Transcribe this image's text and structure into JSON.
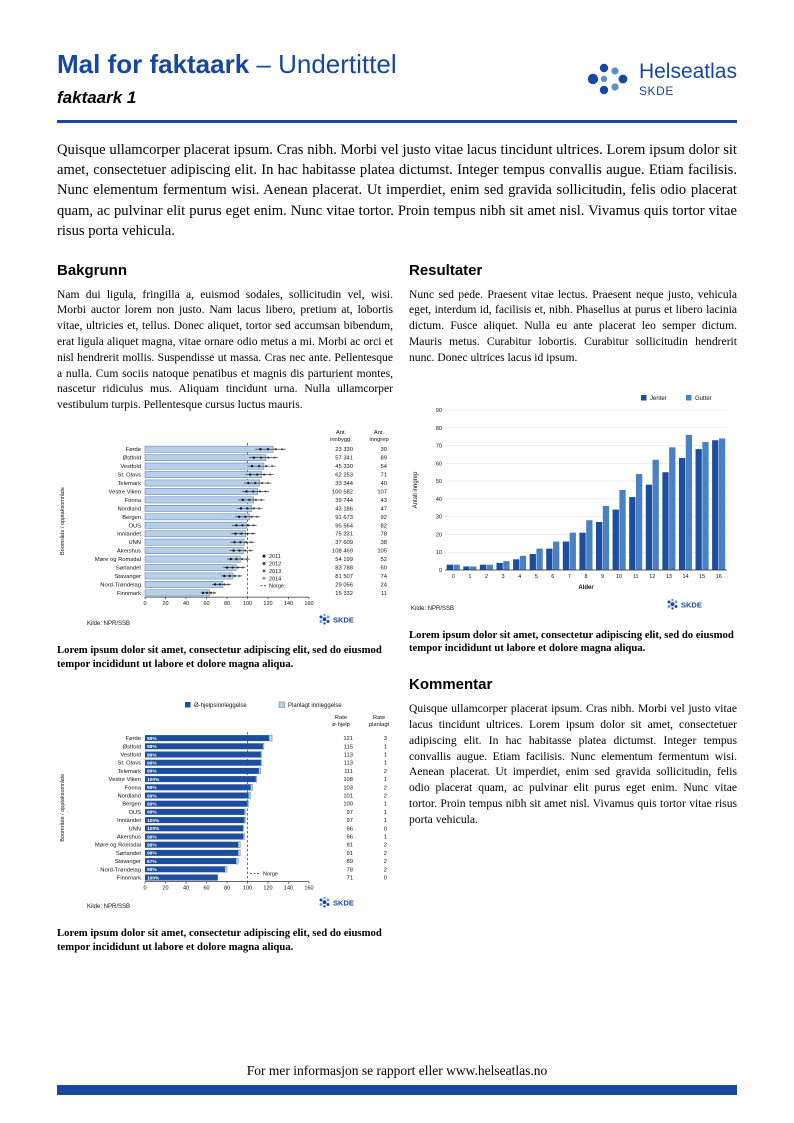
{
  "header": {
    "title_bold": "Mal for faktaark",
    "title_rest": "– Undertittel",
    "sheet_label": "faktaark 1",
    "brand_name": "Helseatlas",
    "brand_org": "SKDE"
  },
  "intro": "Quisque ullamcorper placerat ipsum. Cras nibh. Morbi vel justo vitae lacus tincidunt ultrices. Lorem ipsum dolor sit amet, consectetuer adipiscing elit. In hac habitasse platea dictumst. Integer tempus convallis augue. Etiam facilisis. Nunc elementum fermentum wisi. Aenean placerat. Ut imperdiet, enim sed gravida sollicitudin, felis odio placerat quam, ac pulvinar elit purus eget enim. Nunc vitae tortor. Proin tempus nibh sit amet nisl. Vivamus quis tortor vitae risus porta vehicula.",
  "sections": {
    "bakgrunn": {
      "heading": "Bakgrunn",
      "body": "Nam dui ligula, fringilla a, euismod sodales, sollicitudin vel, wisi. Morbi auctor lorem non justo. Nam lacus libero, pretium at, lobortis vitae, ultricies et, tellus. Donec aliquet, tortor sed accumsan bibendum, erat ligula aliquet magna, vitae ornare odio metus a mi. Morbi ac orci et nisl hendrerit mollis. Suspendisse ut massa. Cras nec ante. Pellentesque a nulla. Cum sociis natoque penatibus et magnis dis parturient montes, nascetur ridiculus mus. Aliquam tincidunt urna. Nulla ullamcorper vestibulum turpis. Pellentesque cursus luctus mauris."
    },
    "resultater": {
      "heading": "Resultater",
      "body": "Nunc sed pede. Praesent vitae lectus. Praesent neque justo, vehicula eget, interdum id, facilisis et, nibh. Phasellus at purus et libero lacinia dictum. Fusce aliquet. Nulla eu ante placerat leo semper dictum. Mauris metus. Curabitur lobortis. Curabitur sollicitudin hendrerit nunc. Donec ultrices lacus id ipsum."
    },
    "kommentar": {
      "heading": "Kommentar",
      "body": "Quisque ullamcorper placerat ipsum. Cras nibh. Morbi vel justo vitae lacus tincidunt ultrices. Lorem ipsum dolor sit amet, consectetuer adipiscing elit. In hac habitasse platea dictumst. Integer tempus convallis augue. Etiam facilisis. Nunc elementum fermentum wisi. Aenean placerat. Ut imperdiet, enim sed gravida sollicitudin, felis odio placerat quam, ac pulvinar elit purus eget enim. Nunc vitae tortor. Proin tempus nibh sit amet nisl. Vivamus quis tortor vitae risus porta vehicula."
    }
  },
  "captions": {
    "chart1": "Lorem ipsum dolor sit amet, consectetur adipiscing elit, sed do eiusmod tempor incididunt ut labore et dolore magna aliqua.",
    "chart2": "Lorem ipsum dolor sit amet, consectetur adipiscing elit, sed do eiusmod tempor incididunt ut labore et dolore magna aliqua.",
    "chart3": "Lorem ipsum dolor sit amet, consectetur adipiscing elit, sed do eiusmod tempor incididunt ut labore et dolore magna aliqua."
  },
  "footer": {
    "text": "For mer informasjon se rapport eller www.helseatlas.no"
  },
  "colors": {
    "brand": "#17479E",
    "bar_light": "#b7cfe9",
    "bar_light_border": "#4d79ab",
    "bar_dark": "#1c4e9d",
    "bar_mid": "#4a80c4",
    "light_dot": "#6fa0d8",
    "grid": "#e3e3e3"
  },
  "chart_data": [
    {
      "id": "chart1",
      "type": "bar",
      "orientation": "horizontal",
      "ylabel": "Boområde / opptaksområde",
      "xticks": [
        0,
        20,
        40,
        60,
        80,
        100,
        120,
        140,
        160
      ],
      "xlim": [
        0,
        160
      ],
      "norge_value": 100,
      "norge_label": "Norge",
      "legend_years": [
        "2011",
        "2012",
        "2013",
        "2014"
      ],
      "col_headers": [
        [
          "Ant.",
          "innbygg."
        ],
        [
          "Ant.",
          "inngrep"
        ]
      ],
      "source": "Kilde: NPR/SSB",
      "logo": "SKDE",
      "rows": [
        {
          "label": "Førde",
          "rate": 125,
          "innbygg": "23 330",
          "inngrep": "30"
        },
        {
          "label": "Østfold",
          "rate": 118,
          "innbygg": "57 341",
          "inngrep": "89"
        },
        {
          "label": "Vestfold",
          "rate": 116,
          "innbygg": "45 330",
          "inngrep": "54"
        },
        {
          "label": "St. Olavs",
          "rate": 114,
          "innbygg": "62 253",
          "inngrep": "71"
        },
        {
          "label": "Telemark",
          "rate": 112,
          "innbygg": "33 344",
          "inngrep": "40"
        },
        {
          "label": "Vestre Viken",
          "rate": 110,
          "innbygg": "100 582",
          "inngrep": "107"
        },
        {
          "label": "Fonna",
          "rate": 106,
          "innbygg": "39 744",
          "inngrep": "43"
        },
        {
          "label": "Nordland",
          "rate": 104,
          "innbygg": "43 186",
          "inngrep": "47"
        },
        {
          "label": "Bergen",
          "rate": 102,
          "innbygg": "91 673",
          "inngrep": "92"
        },
        {
          "label": "OUS",
          "rate": 99,
          "innbygg": "95 564",
          "inngrep": "82"
        },
        {
          "label": "Innlandet",
          "rate": 98,
          "innbygg": "75 231",
          "inngrep": "78"
        },
        {
          "label": "UNN",
          "rate": 97,
          "innbygg": "37 609",
          "inngrep": "38"
        },
        {
          "label": "Akershus",
          "rate": 96,
          "innbygg": "108 469",
          "inngrep": "105"
        },
        {
          "label": "Møre og Romsdal",
          "rate": 93,
          "innbygg": "54 199",
          "inngrep": "52"
        },
        {
          "label": "Sørlandet",
          "rate": 89,
          "innbygg": "83 788",
          "inngrep": "60"
        },
        {
          "label": "Stavanger",
          "rate": 86,
          "innbygg": "81 507",
          "inngrep": "74"
        },
        {
          "label": "Nord-Trøndelag",
          "rate": 76,
          "innbygg": "29 056",
          "inngrep": "24"
        },
        {
          "label": "Finnmark",
          "rate": 63,
          "innbygg": "15 332",
          "inngrep": "11"
        }
      ]
    },
    {
      "id": "chart2",
      "type": "bar",
      "orientation": "horizontal",
      "stacked": true,
      "legend": [
        "Ø-hjelpsinnleggelse",
        "Planlagt innleggelse"
      ],
      "ylabel": "Boområde / opptaksområde",
      "xticks": [
        0,
        20,
        40,
        60,
        80,
        100,
        120,
        140,
        160
      ],
      "xlim": [
        0,
        160
      ],
      "norge_value": 100,
      "norge_label": "Norge",
      "col_headers": [
        [
          "Rate",
          "ø-hjelp"
        ],
        [
          "Rate",
          "planlagt"
        ]
      ],
      "source": "Kilde: NPR/SSB",
      "logo": "SKDE",
      "rows": [
        {
          "label": "Førde",
          "pct": "98%",
          "rate_ohjelp": 121,
          "rate_planlagt": 3
        },
        {
          "label": "Østfold",
          "pct": "98%",
          "rate_ohjelp": 115,
          "rate_planlagt": 1
        },
        {
          "label": "Vestfold",
          "pct": "99%",
          "rate_ohjelp": 113,
          "rate_planlagt": 1
        },
        {
          "label": "St. Olavs",
          "pct": "99%",
          "rate_ohjelp": 113,
          "rate_planlagt": 1
        },
        {
          "label": "Telemark",
          "pct": "99%",
          "rate_ohjelp": 111,
          "rate_planlagt": 2
        },
        {
          "label": "Vestre Viken",
          "pct": "100%",
          "rate_ohjelp": 108,
          "rate_planlagt": 1
        },
        {
          "label": "Fonna",
          "pct": "99%",
          "rate_ohjelp": 103,
          "rate_planlagt": 2
        },
        {
          "label": "Nordland",
          "pct": "99%",
          "rate_ohjelp": 101,
          "rate_planlagt": 2
        },
        {
          "label": "Bergen",
          "pct": "99%",
          "rate_ohjelp": 100,
          "rate_planlagt": 1
        },
        {
          "label": "OUS",
          "pct": "99%",
          "rate_ohjelp": 97,
          "rate_planlagt": 1
        },
        {
          "label": "Innlandet",
          "pct": "100%",
          "rate_ohjelp": 97,
          "rate_planlagt": 1
        },
        {
          "label": "UNN",
          "pct": "100%",
          "rate_ohjelp": 96,
          "rate_planlagt": 0
        },
        {
          "label": "Akershus",
          "pct": "98%",
          "rate_ohjelp": 96,
          "rate_planlagt": 1
        },
        {
          "label": "Møre og Romsdal",
          "pct": "98%",
          "rate_ohjelp": 91,
          "rate_planlagt": 2
        },
        {
          "label": "Sørlandet",
          "pct": "98%",
          "rate_ohjelp": 91,
          "rate_planlagt": 2
        },
        {
          "label": "Stavanger",
          "pct": "97%",
          "rate_ohjelp": 89,
          "rate_planlagt": 2
        },
        {
          "label": "Nord-Trøndelag",
          "pct": "98%",
          "rate_ohjelp": 78,
          "rate_planlagt": 2
        },
        {
          "label": "Finnmark",
          "pct": "100%",
          "rate_ohjelp": 71,
          "rate_planlagt": 0
        }
      ]
    },
    {
      "id": "chart3",
      "type": "bar",
      "orientation": "vertical",
      "title": "",
      "xlabel": "Alder",
      "ylabel": "Antall inngrep",
      "ylim": [
        0,
        90
      ],
      "yticks": [
        0,
        10,
        20,
        30,
        40,
        50,
        60,
        70,
        80,
        90
      ],
      "categories": [
        "0",
        "1",
        "2",
        "3",
        "4",
        "5",
        "6",
        "7",
        "8",
        "9",
        "10",
        "11",
        "12",
        "13",
        "14",
        "15",
        "16"
      ],
      "series": [
        {
          "name": "Jenter",
          "values": [
            3,
            2,
            3,
            4,
            6,
            9,
            12,
            16,
            21,
            27,
            34,
            41,
            48,
            55,
            63,
            68,
            73
          ]
        },
        {
          "name": "Gutter",
          "values": [
            3,
            2,
            3,
            5,
            8,
            12,
            16,
            21,
            28,
            36,
            45,
            54,
            62,
            69,
            76,
            72,
            74
          ]
        }
      ],
      "source": "Kilde: NPR/SSB",
      "logo": "SKDE"
    }
  ]
}
